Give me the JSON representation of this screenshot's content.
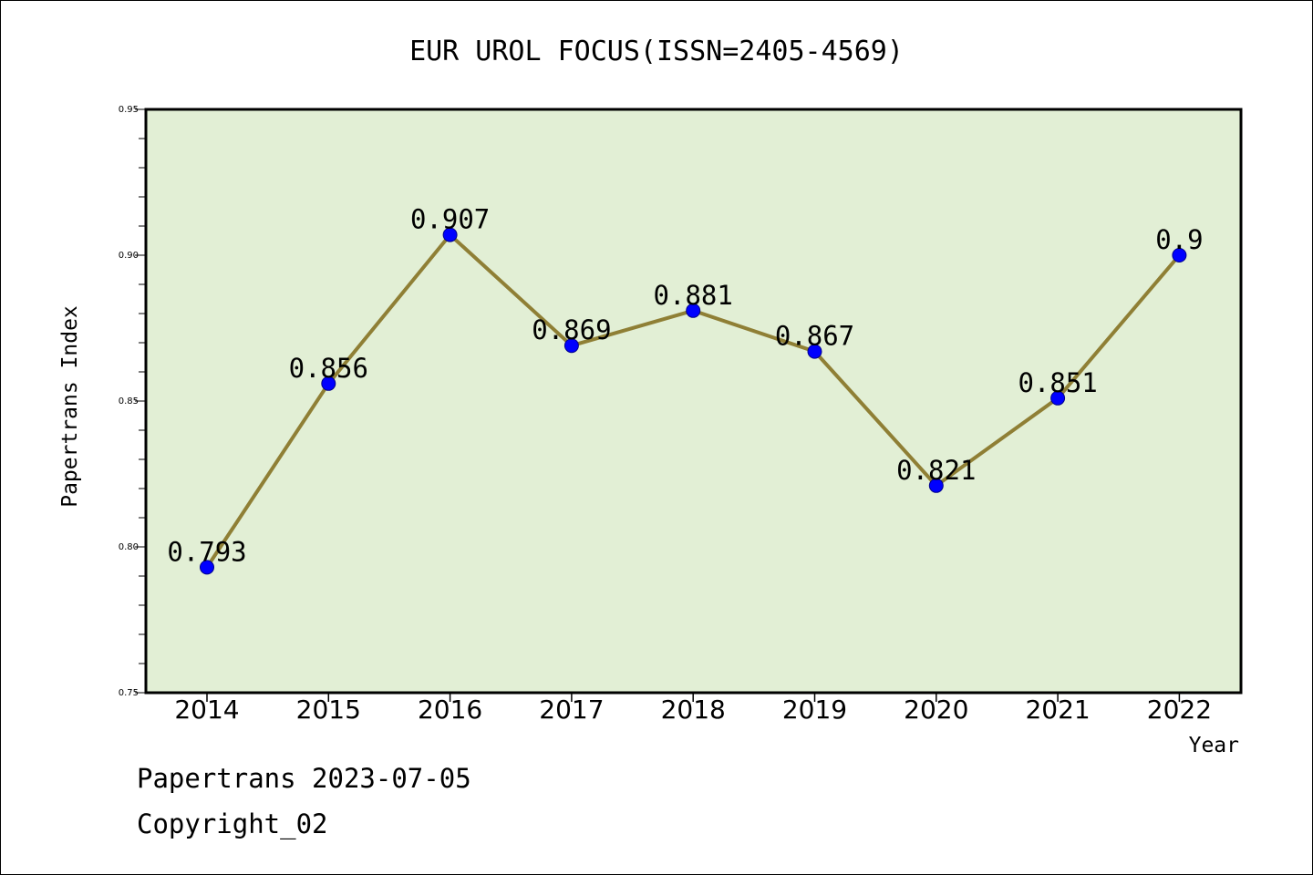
{
  "chart_data": {
    "type": "line",
    "title": "EUR UROL FOCUS(ISSN=2405-4569)",
    "xlabel": "Year",
    "ylabel": "Papertrans Index",
    "x": [
      "2014",
      "2015",
      "2016",
      "2017",
      "2018",
      "2019",
      "2020",
      "2021",
      "2022"
    ],
    "series": [
      {
        "values": [
          0.793,
          0.856,
          0.907,
          0.869,
          0.881,
          0.867,
          0.821,
          0.851,
          0.9
        ],
        "labels": [
          "0.793",
          "0.856",
          "0.907",
          "0.869",
          "0.881",
          "0.867",
          "0.821",
          "0.851",
          "0.9"
        ]
      }
    ],
    "ylim": [
      0.75,
      0.95
    ],
    "yticks": [
      "0.75",
      "0.80",
      "0.85",
      "0.90",
      "0.95"
    ],
    "grid": false,
    "legend": "none",
    "colors": {
      "plot_background": "#e2efd5",
      "line": "#8f7f35",
      "marker": "#0000ff"
    }
  },
  "footer": {
    "line1": "Papertrans 2023-07-05",
    "line2": "Copyright_02"
  }
}
